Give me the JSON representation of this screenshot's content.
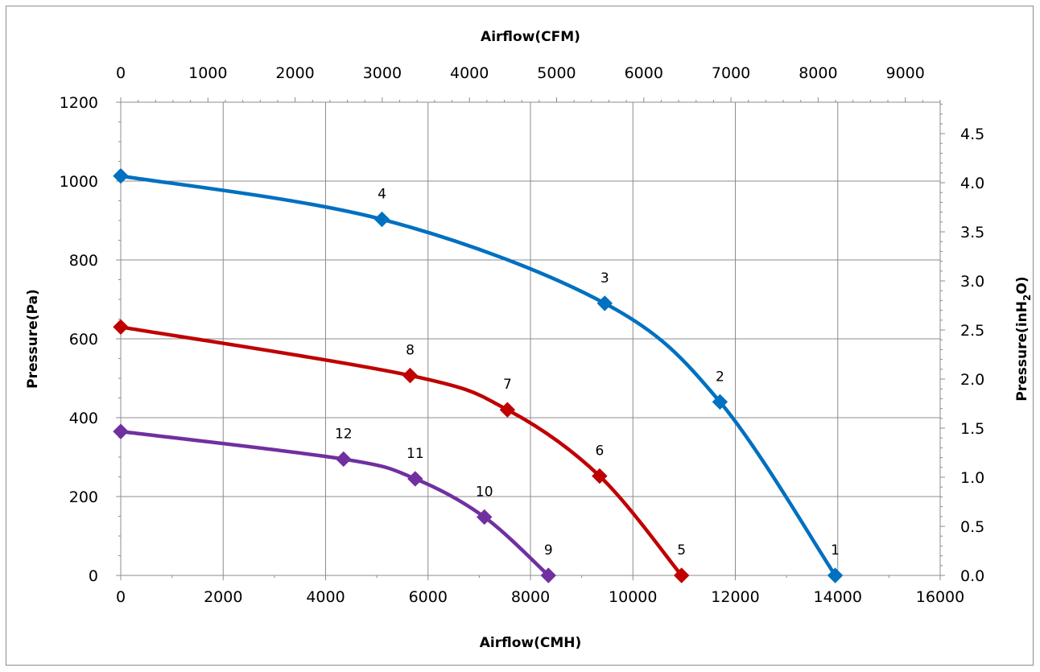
{
  "chart_data": {
    "type": "line",
    "x_bottom": {
      "label": "Airflow(CMH)",
      "range": [
        0,
        16000
      ],
      "ticks": [
        "0",
        "2000",
        "4000",
        "6000",
        "8000",
        "10000",
        "12000",
        "14000",
        "16000"
      ]
    },
    "x_top": {
      "label": "Airflow(CFM)",
      "range": [
        0,
        9400
      ],
      "ticks": [
        "0",
        "1000",
        "2000",
        "3000",
        "4000",
        "5000",
        "6000",
        "7000",
        "8000",
        "9000"
      ]
    },
    "y_left": {
      "label": "Pressure(Pa)",
      "range": [
        0,
        1200
      ],
      "ticks": [
        "0",
        "200",
        "400",
        "600",
        "800",
        "1000",
        "1200"
      ]
    },
    "y_right": {
      "label_main": "Pressure(inH",
      "label_sub": "2",
      "label_end": "O)",
      "range": [
        0,
        4.82
      ],
      "ticks": [
        "0.0",
        "0.5",
        "1.0",
        "1.5",
        "2.0",
        "2.5",
        "3.0",
        "3.5",
        "4.0",
        "4.5"
      ]
    },
    "grid": true,
    "series": [
      {
        "color": "#0070c0",
        "points": [
          {
            "x": 0,
            "y": 1013,
            "label": ""
          },
          {
            "x": 5100,
            "y": 903,
            "label": "4"
          },
          {
            "x": 9450,
            "y": 690,
            "label": "3"
          },
          {
            "x": 11700,
            "y": 440,
            "label": "2"
          },
          {
            "x": 13950,
            "y": 0,
            "label": "1"
          }
        ]
      },
      {
        "color": "#c00000",
        "points": [
          {
            "x": 0,
            "y": 630,
            "label": ""
          },
          {
            "x": 5650,
            "y": 507,
            "label": "8"
          },
          {
            "x": 7550,
            "y": 420,
            "label": "7"
          },
          {
            "x": 9350,
            "y": 252,
            "label": "6"
          },
          {
            "x": 10950,
            "y": 0,
            "label": "5"
          }
        ]
      },
      {
        "color": "#7030a0",
        "points": [
          {
            "x": 0,
            "y": 365,
            "label": ""
          },
          {
            "x": 4350,
            "y": 295,
            "label": "12"
          },
          {
            "x": 5750,
            "y": 245,
            "label": "11"
          },
          {
            "x": 7100,
            "y": 148,
            "label": "10"
          },
          {
            "x": 8350,
            "y": 0,
            "label": "9"
          }
        ]
      }
    ]
  }
}
